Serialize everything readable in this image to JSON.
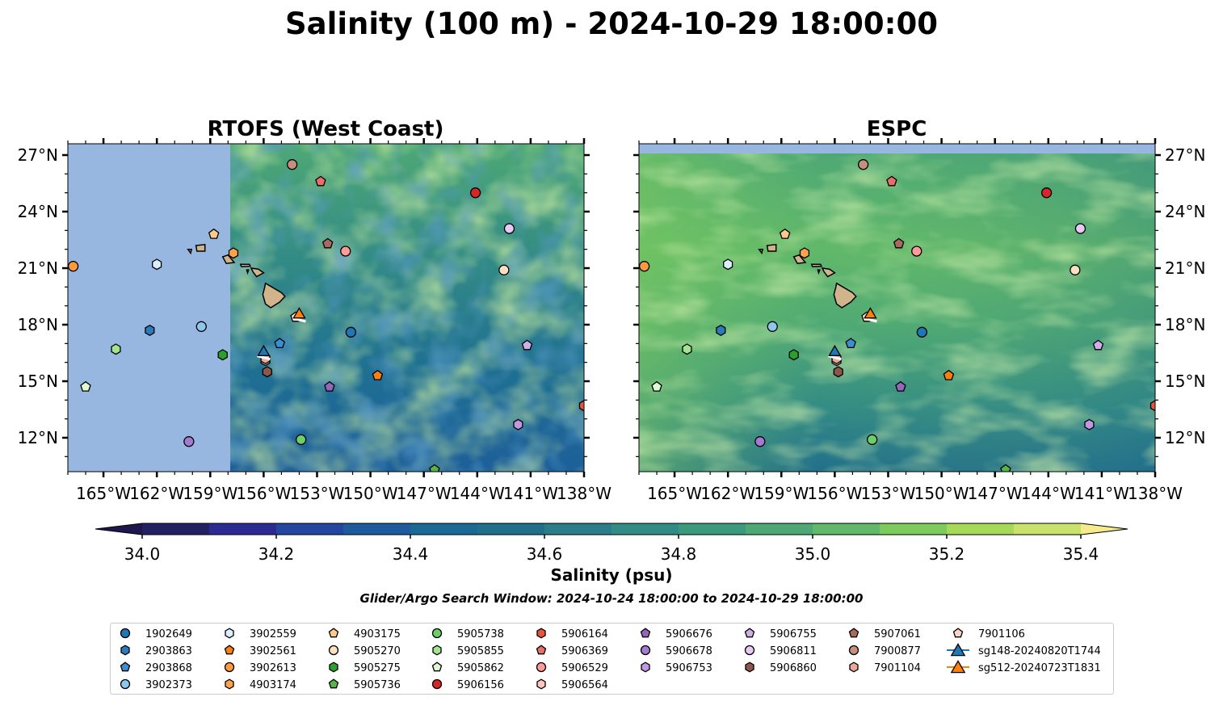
{
  "figure": {
    "title": "Salinity (100 m) - 2024-10-29 18:00:00",
    "search_window": "Glider/Argo Search Window: 2024-10-24 18:00:00 to 2024-10-29 18:00:00"
  },
  "chart_data": [
    {
      "type": "heatmap",
      "title": "RTOFS (West Coast)",
      "xlim": [
        -167,
        -138
      ],
      "ylim": [
        10.2,
        27.6
      ],
      "x_ticks": [
        -165,
        -162,
        -159,
        -156,
        -153,
        -150,
        -147,
        -144,
        -141,
        -138
      ],
      "x_tick_labels": [
        "165°W",
        "162°W",
        "159°W",
        "156°W",
        "153°W",
        "150°W",
        "147°W",
        "144°W",
        "141°W",
        "138°W"
      ],
      "y_ticks": [
        12,
        15,
        18,
        21,
        24,
        27
      ],
      "y_tick_labels": [
        "12°N",
        "15°N",
        "18°N",
        "21°N",
        "24°N",
        "27°N"
      ],
      "y_axis_side": "left",
      "data_coverage_lon": [
        -157.9,
        -138
      ],
      "no_data_color": "#97b6e0"
    },
    {
      "type": "heatmap",
      "title": "ESPC",
      "xlim": [
        -167,
        -138
      ],
      "ylim": [
        10.2,
        27.6
      ],
      "x_ticks": [
        -165,
        -162,
        -159,
        -156,
        -153,
        -150,
        -147,
        -144,
        -141,
        -138
      ],
      "x_tick_labels": [
        "165°W",
        "162°W",
        "159°W",
        "156°W",
        "153°W",
        "150°W",
        "147°W",
        "144°W",
        "141°W",
        "138°W"
      ],
      "y_ticks": [
        12,
        15,
        18,
        21,
        24,
        27
      ],
      "y_tick_labels": [
        "12°N",
        "15°N",
        "18°N",
        "21°N",
        "24°N",
        "27°N"
      ],
      "y_axis_side": "right",
      "data_coverage_lat": [
        10.2,
        27.1
      ],
      "no_data_color": "#97b6e0"
    }
  ],
  "colorbar": {
    "label": "Salinity (psu)",
    "min": 34.0,
    "max": 35.4,
    "step": 0.1,
    "ticks": [
      34.0,
      34.2,
      34.4,
      34.6,
      34.8,
      35.0,
      35.2,
      35.4
    ],
    "tick_labels": [
      "34.0",
      "34.2",
      "34.4",
      "34.6",
      "34.8",
      "35.0",
      "35.2",
      "35.4"
    ],
    "colors": [
      "#232064",
      "#2c2b93",
      "#2445a0",
      "#1d5b9c",
      "#1b6a96",
      "#226f8c",
      "#2b7d89",
      "#338b85",
      "#3b9a7e",
      "#4ea875",
      "#61b86a",
      "#7ccb5c",
      "#a5d957",
      "#c9e26b"
    ],
    "extend_low_color": "#1e174e",
    "extend_high_color": "#f6eb8a"
  },
  "markers": [
    {
      "id": "1902649",
      "lon": -151.1,
      "lat": 17.6,
      "shape": "circle",
      "color": "#1f77b4"
    },
    {
      "id": "2903863",
      "lon": -162.4,
      "lat": 17.7,
      "shape": "hexagon",
      "color": "#2b7bba"
    },
    {
      "id": "2903868",
      "lon": -155.1,
      "lat": 17.0,
      "shape": "pentagon",
      "color": "#3b8fd0"
    },
    {
      "id": "3902373",
      "lon": -159.5,
      "lat": 17.9,
      "shape": "circle",
      "color": "#8ec7ec"
    },
    {
      "id": "3902559",
      "lon": -162.0,
      "lat": 21.2,
      "shape": "hexagon",
      "color": "#dcefff"
    },
    {
      "id": "3902561",
      "lon": -149.6,
      "lat": 15.3,
      "shape": "pentagon",
      "color": "#ff7f0e"
    },
    {
      "id": "3902613",
      "lon": -166.7,
      "lat": 21.1,
      "shape": "circle",
      "color": "#ff9a3c"
    },
    {
      "id": "4903174",
      "lon": -157.7,
      "lat": 21.8,
      "shape": "hexagon",
      "color": "#ffa24a"
    },
    {
      "id": "4903175",
      "lon": -158.8,
      "lat": 22.8,
      "shape": "pentagon",
      "color": "#ffc98a"
    },
    {
      "id": "5905270",
      "lon": -142.5,
      "lat": 20.9,
      "shape": "circle",
      "color": "#fde0c2"
    },
    {
      "id": "5905275",
      "lon": -158.3,
      "lat": 16.4,
      "shape": "hexagon",
      "color": "#2ca02c"
    },
    {
      "id": "5905736",
      "lon": -146.4,
      "lat": 10.3,
      "shape": "pentagon",
      "color": "#54b548"
    },
    {
      "id": "5905738",
      "lon": -153.9,
      "lat": 11.9,
      "shape": "circle",
      "color": "#6ccf6a"
    },
    {
      "id": "5905855",
      "lon": -164.3,
      "lat": 16.7,
      "shape": "hexagon",
      "color": "#a2e48f"
    },
    {
      "id": "5905862",
      "lon": -166.0,
      "lat": 14.7,
      "shape": "pentagon",
      "color": "#ddfad1"
    },
    {
      "id": "5906156",
      "lon": -144.1,
      "lat": 25.0,
      "shape": "circle",
      "color": "#d62728"
    },
    {
      "id": "5906164",
      "lon": -138.0,
      "lat": 13.7,
      "shape": "hexagon",
      "color": "#e8533d"
    },
    {
      "id": "5906369",
      "lon": -152.8,
      "lat": 25.6,
      "shape": "pentagon",
      "color": "#e8706c"
    },
    {
      "id": "5906529",
      "lon": -151.4,
      "lat": 21.9,
      "shape": "circle",
      "color": "#ff9c97"
    },
    {
      "id": "5906564",
      "lon": -155.9,
      "lat": 16.1,
      "shape": "hexagon",
      "color": "#ffc6c0"
    },
    {
      "id": "5906676",
      "lon": -152.3,
      "lat": 14.7,
      "shape": "pentagon",
      "color": "#9467bd"
    },
    {
      "id": "5906678",
      "lon": -160.2,
      "lat": 11.8,
      "shape": "circle",
      "color": "#a57ad0"
    },
    {
      "id": "5906753",
      "lon": -141.7,
      "lat": 12.7,
      "shape": "hexagon",
      "color": "#bf98e0"
    },
    {
      "id": "5906755",
      "lon": -141.2,
      "lat": 16.9,
      "shape": "pentagon",
      "color": "#d0aee9"
    },
    {
      "id": "5906811",
      "lon": -142.2,
      "lat": 23.1,
      "shape": "circle",
      "color": "#e8c9f5"
    },
    {
      "id": "5906860",
      "lon": -155.8,
      "lat": 15.5,
      "shape": "hexagon",
      "color": "#8c564b"
    },
    {
      "id": "5907061",
      "lon": -152.4,
      "lat": 22.3,
      "shape": "pentagon",
      "color": "#a86a5e"
    },
    {
      "id": "7900877",
      "lon": -154.4,
      "lat": 26.5,
      "shape": "circle",
      "color": "#c4907d"
    },
    {
      "id": "7901104",
      "lon": -155.9,
      "lat": 16.2,
      "shape": "hexagon",
      "color": "#e9a898"
    },
    {
      "id": "7901106",
      "lon": -154.2,
      "lat": 18.4,
      "shape": "pentagon",
      "color": "#fcd5c7"
    },
    {
      "id": "sg148-20240820T1744",
      "lon": -156.0,
      "lat": 16.6,
      "shape": "triangle",
      "color": "#1f77b4"
    },
    {
      "id": "sg512-20240723T1831",
      "lon": -154.0,
      "lat": 18.6,
      "shape": "triangle",
      "color": "#ff7f0e"
    }
  ],
  "legend": {
    "columns": [
      [
        "1902649",
        "2903863",
        "2903868",
        "3902373"
      ],
      [
        "3902559",
        "3902561",
        "3902613",
        "4903174"
      ],
      [
        "4903175",
        "5905270",
        "5905275",
        "5905736"
      ],
      [
        "5905738",
        "5905855",
        "5905862",
        "5906156"
      ],
      [
        "5906164",
        "5906369",
        "5906529",
        "5906564"
      ],
      [
        "5906676",
        "5906678",
        "5906753"
      ],
      [
        "5906755",
        "5906811",
        "5906860"
      ],
      [
        "5907061",
        "7900877",
        "7901104"
      ],
      [
        "7901106",
        "sg148-20240820T1744",
        "sg512-20240723T1831"
      ]
    ]
  }
}
